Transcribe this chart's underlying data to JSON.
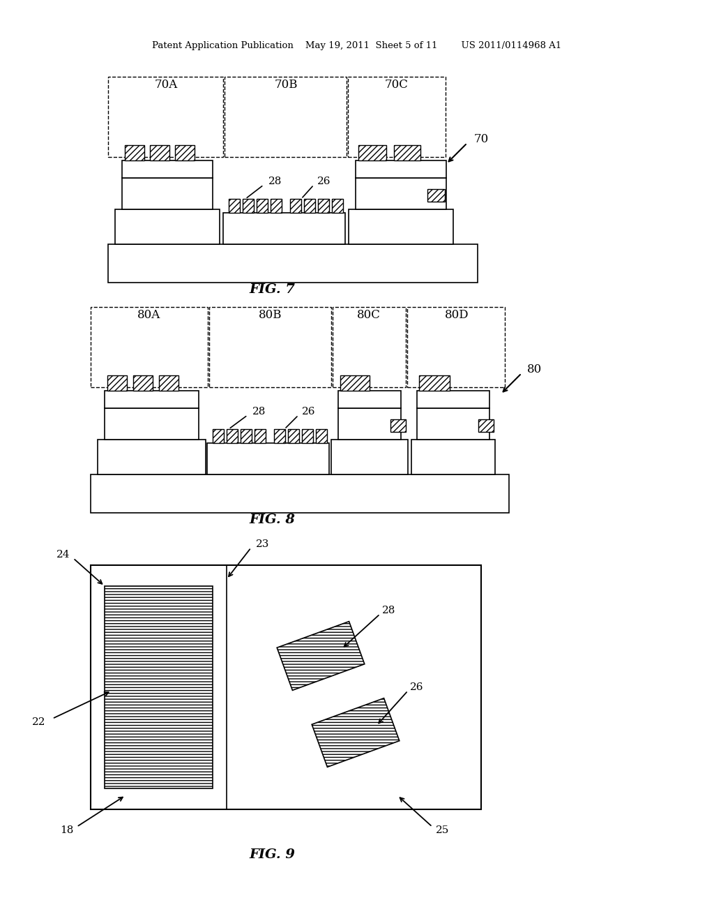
{
  "bg_color": "#ffffff",
  "text_color": "#000000",
  "header_text": "Patent Application Publication    May 19, 2011  Sheet 5 of 11        US 2011/0114968 A1",
  "fig7_label": "FIG. 7",
  "fig8_label": "FIG. 8",
  "fig9_label": "FIG. 9",
  "fig7_region_labels": [
    "70A",
    "70B",
    "70C"
  ],
  "fig8_region_labels": [
    "80A",
    "80B",
    "80C",
    "80D"
  ],
  "ref_70": "70",
  "ref_80": "80",
  "ref_22": "22",
  "ref_23": "23",
  "ref_24": "24",
  "ref_25": "25",
  "ref_18": "18",
  "ref_26": "26",
  "ref_28": "28"
}
